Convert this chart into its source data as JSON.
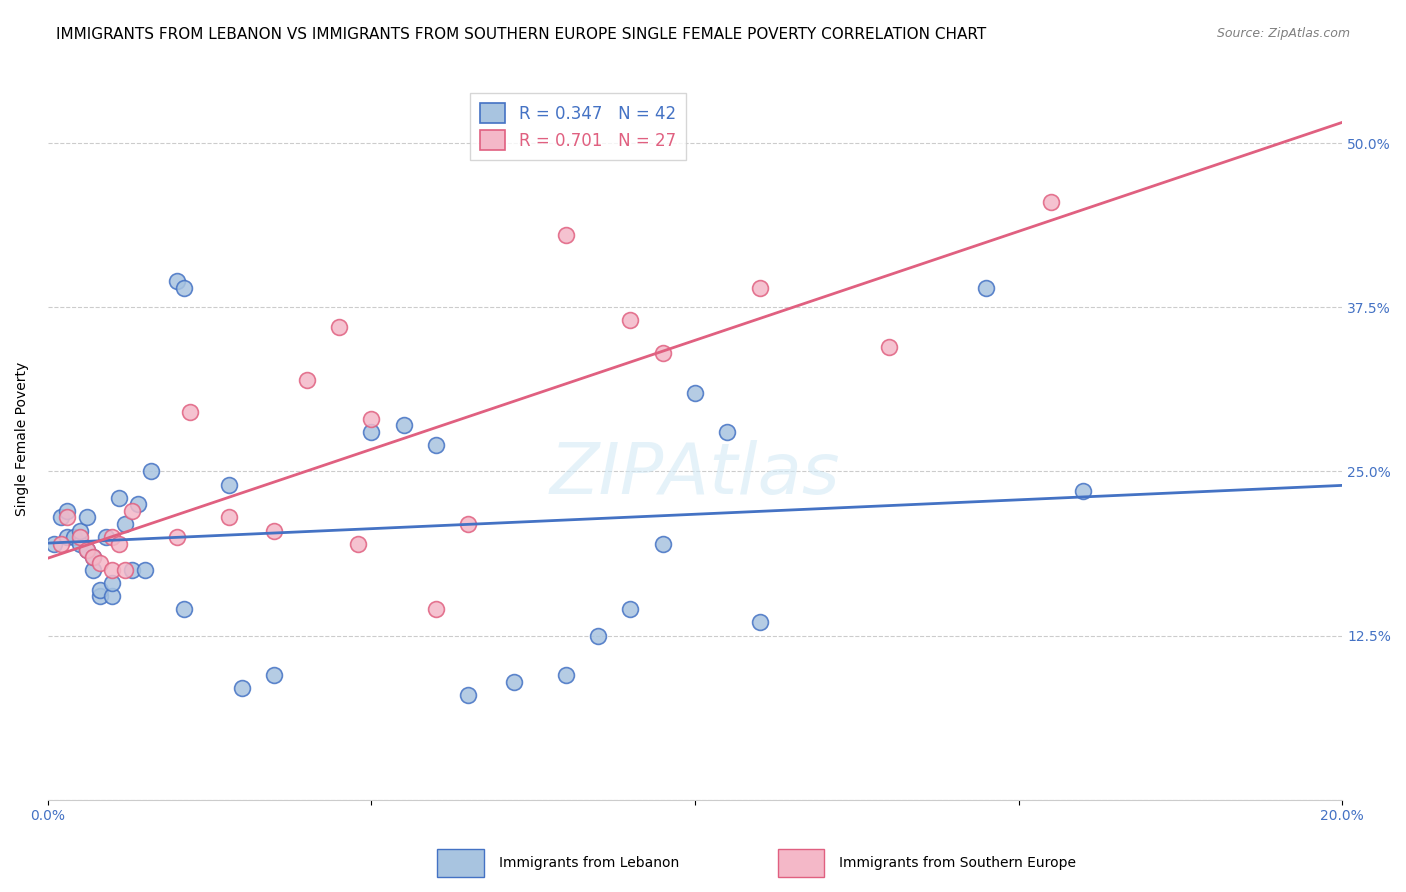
{
  "title": "IMMIGRANTS FROM LEBANON VS IMMIGRANTS FROM SOUTHERN EUROPE SINGLE FEMALE POVERTY CORRELATION CHART",
  "source": "Source: ZipAtlas.com",
  "ylabel": "Single Female Poverty",
  "xlim": [
    0.0,
    0.2
  ],
  "ylim": [
    0.0,
    0.55
  ],
  "yticks": [
    0.0,
    0.125,
    0.25,
    0.375,
    0.5
  ],
  "ytick_labels": [
    "",
    "12.5%",
    "25.0%",
    "37.5%",
    "50.0%"
  ],
  "xticks": [
    0.0,
    0.05,
    0.1,
    0.15,
    0.2
  ],
  "xtick_labels": [
    "0.0%",
    "",
    "",
    "",
    "20.0%"
  ],
  "lebanon_R": 0.347,
  "lebanon_N": 42,
  "europe_R": 0.701,
  "europe_N": 27,
  "lebanon_color": "#a8c4e0",
  "lebanon_line_color": "#4472c4",
  "europe_color": "#f4b8c8",
  "europe_line_color": "#e06080",
  "background_color": "#ffffff",
  "grid_color": "#cccccc",
  "lebanon_x": [
    0.001,
    0.002,
    0.003,
    0.003,
    0.004,
    0.005,
    0.005,
    0.006,
    0.006,
    0.007,
    0.007,
    0.008,
    0.008,
    0.009,
    0.01,
    0.01,
    0.011,
    0.012,
    0.013,
    0.014,
    0.015,
    0.016,
    0.02,
    0.021,
    0.021,
    0.028,
    0.03,
    0.035,
    0.05,
    0.055,
    0.06,
    0.065,
    0.072,
    0.08,
    0.085,
    0.09,
    0.095,
    0.1,
    0.105,
    0.11,
    0.145,
    0.16
  ],
  "lebanon_y": [
    0.195,
    0.215,
    0.2,
    0.22,
    0.2,
    0.195,
    0.205,
    0.19,
    0.215,
    0.175,
    0.185,
    0.155,
    0.16,
    0.2,
    0.155,
    0.165,
    0.23,
    0.21,
    0.175,
    0.225,
    0.175,
    0.25,
    0.395,
    0.39,
    0.145,
    0.24,
    0.085,
    0.095,
    0.28,
    0.285,
    0.27,
    0.08,
    0.09,
    0.095,
    0.125,
    0.145,
    0.195,
    0.31,
    0.28,
    0.135,
    0.39,
    0.235
  ],
  "europe_x": [
    0.002,
    0.003,
    0.005,
    0.006,
    0.007,
    0.008,
    0.01,
    0.01,
    0.011,
    0.012,
    0.013,
    0.02,
    0.022,
    0.028,
    0.035,
    0.04,
    0.045,
    0.048,
    0.05,
    0.06,
    0.065,
    0.08,
    0.09,
    0.095,
    0.11,
    0.13,
    0.155
  ],
  "europe_y": [
    0.195,
    0.215,
    0.2,
    0.19,
    0.185,
    0.18,
    0.175,
    0.2,
    0.195,
    0.175,
    0.22,
    0.2,
    0.295,
    0.215,
    0.205,
    0.32,
    0.36,
    0.195,
    0.29,
    0.145,
    0.21,
    0.43,
    0.365,
    0.34,
    0.39,
    0.345,
    0.455
  ],
  "title_fontsize": 11,
  "axis_fontsize": 10,
  "tick_fontsize": 10,
  "legend_fontsize": 12
}
